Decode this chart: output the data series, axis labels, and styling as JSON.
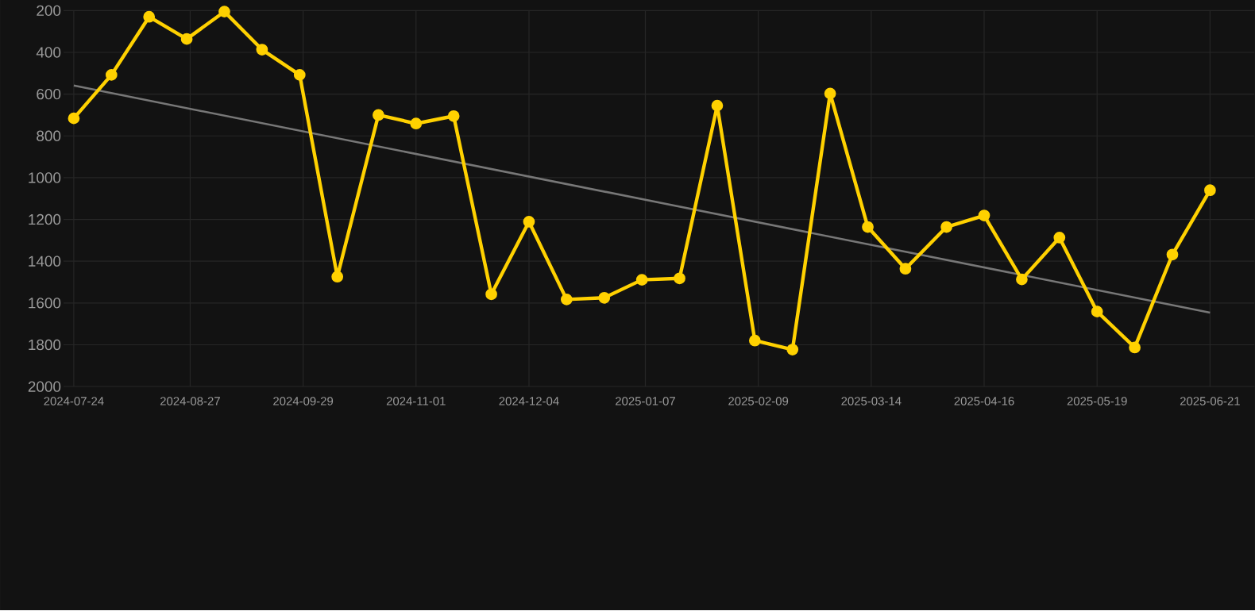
{
  "chart_data": {
    "type": "line",
    "x": [
      "2024-07-24",
      "2024-08-04",
      "2024-08-15",
      "2024-08-26",
      "2024-09-06",
      "2024-09-17",
      "2024-09-28",
      "2024-10-09",
      "2024-10-21",
      "2024-11-01",
      "2024-11-12",
      "2024-11-23",
      "2024-12-04",
      "2024-12-15",
      "2024-12-26",
      "2025-01-06",
      "2025-01-17",
      "2025-01-28",
      "2025-02-08",
      "2025-02-19",
      "2025-03-02",
      "2025-03-13",
      "2025-03-24",
      "2025-04-05",
      "2025-04-16",
      "2025-04-27",
      "2025-05-08",
      "2025-05-19",
      "2025-05-30",
      "2025-06-10",
      "2025-06-21"
    ],
    "series": [
      {
        "color": "#ffd100",
        "marker": "circle",
        "values": [
          716,
          508,
          230,
          336,
          205,
          387,
          508,
          1474,
          700,
          741,
          705,
          1558,
          1211,
          1583,
          1575,
          1489,
          1482,
          655,
          1780,
          1823,
          597,
          1236,
          1436,
          1236,
          1181,
          1487,
          1287,
          1641,
          1813,
          1368,
          1060
        ]
      },
      {
        "type": "line",
        "color": "#777777",
        "marker": "none",
        "x": [
          "2024-07-24",
          "2025-06-21"
        ],
        "values": [
          559,
          1646
        ]
      }
    ],
    "xlim": [
      "2024-07-21",
      "2025-07-04"
    ],
    "ylim": [
      2000,
      200
    ],
    "xticks": [
      "2024-07-24",
      "2024-08-27",
      "2024-09-29",
      "2024-11-01",
      "2024-12-04",
      "2025-01-07",
      "2025-02-09",
      "2025-03-14",
      "2025-04-16",
      "2025-05-19",
      "2025-06-21"
    ],
    "yticks": [
      200,
      400,
      600,
      800,
      1000,
      1200,
      1400,
      1600,
      1800,
      2000
    ],
    "grid": true,
    "legend": false,
    "line_style": "solid"
  }
}
